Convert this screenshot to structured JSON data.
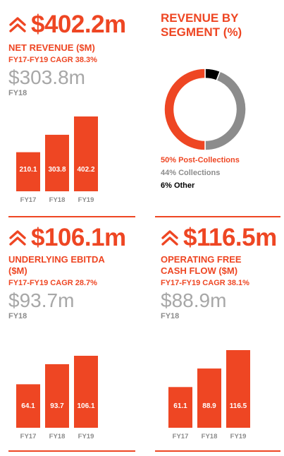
{
  "colors": {
    "accent": "#ee4623",
    "bar_text": "#ffffff",
    "prior_value": "#a7a7a7",
    "axis_label": "#8c8c8c",
    "gray_segment": "#8c8c8c",
    "black_segment": "#000000"
  },
  "metrics": [
    {
      "headline": "$402.2m",
      "label": "NET REVENUE ($m)",
      "cagr": "FY17-FY19 CAGR 38.3%",
      "prior_value": "$303.8m",
      "prior_label": "FY18"
    },
    {
      "headline": "$106.1m",
      "label": "UNDERLYING EBITDA\n($m)",
      "cagr": "FY17-FY19 CAGR 28.7%",
      "prior_value": "$93.7m",
      "prior_label": "FY18"
    },
    {
      "headline": "$116.5m",
      "label": "OPERATING FREE\nCASH FLOW ($m)",
      "cagr": "FY17-FY19 CAGR 38.1%",
      "prior_value": "$88.9m",
      "prior_label": "FY18"
    }
  ],
  "segment": {
    "title": "REVENUE BY\nSEGMENT (%)",
    "legend": [
      "50% Post-Collections",
      "44% Collections",
      "6% Other"
    ]
  },
  "chart_data": [
    {
      "type": "bar",
      "categories": [
        "FY17",
        "FY18",
        "FY19"
      ],
      "values": [
        210.1,
        303.8,
        402.2
      ],
      "value_labels": [
        "210.1",
        "303.8",
        "402.2"
      ],
      "ylim": [
        0,
        402.2
      ],
      "color": "#ee4623"
    },
    {
      "type": "pie",
      "donut": true,
      "labels": [
        "Post-Collections",
        "Collections",
        "Other"
      ],
      "values": [
        50,
        44,
        6
      ],
      "colors": [
        "#ee4623",
        "#8c8c8c",
        "#000000"
      ]
    },
    {
      "type": "bar",
      "categories": [
        "FY17",
        "FY18",
        "FY19"
      ],
      "values": [
        64.1,
        93.7,
        106.1
      ],
      "value_labels": [
        "64.1",
        "93.7",
        "106.1"
      ],
      "ylim": [
        0,
        106.1
      ],
      "color": "#ee4623"
    },
    {
      "type": "bar",
      "categories": [
        "FY17",
        "FY18",
        "FY19"
      ],
      "values": [
        61.1,
        88.9,
        116.5
      ],
      "value_labels": [
        "61.1",
        "88.9",
        "116.5"
      ],
      "ylim": [
        0,
        116.5
      ],
      "color": "#ee4623"
    }
  ]
}
